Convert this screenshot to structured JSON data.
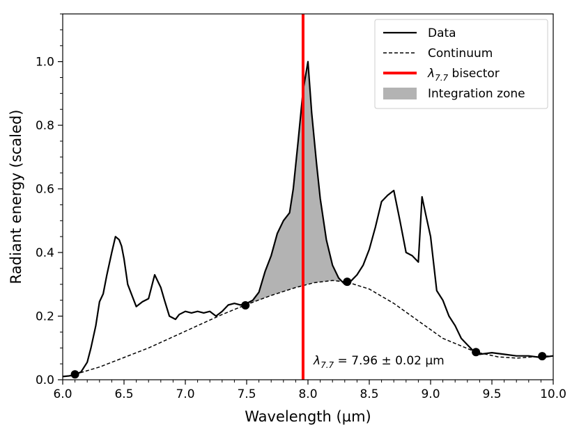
{
  "chart_data": {
    "type": "line",
    "title": "",
    "xlabel": "Wavelength (µm)",
    "ylabel": "Radiant energy (scaled)",
    "xlim": [
      6.0,
      10.0
    ],
    "ylim": [
      0.0,
      1.15
    ],
    "x_ticks": [
      6.0,
      6.5,
      7.0,
      7.5,
      8.0,
      8.5,
      9.0,
      9.5,
      10.0
    ],
    "x_tick_labels": [
      "6.0",
      "6.5",
      "7.0",
      "7.5",
      "8.0",
      "8.5",
      "9.0",
      "9.5",
      "10.0"
    ],
    "x_minor_step": 0.1,
    "y_ticks": [
      0.0,
      0.2,
      0.4,
      0.6,
      0.8,
      1.0
    ],
    "y_tick_labels": [
      "0.0",
      "0.2",
      "0.4",
      "0.6",
      "0.8",
      "1.0"
    ],
    "y_minor_step": 0.05,
    "grid": false,
    "legend_position": "top-right",
    "legend": [
      {
        "label": "Data",
        "style": "solid-line"
      },
      {
        "label": "Continuum",
        "style": "dashed-line"
      },
      {
        "label_main": "λ",
        "label_sub": "7.7",
        "label_rest": " bisector",
        "style": "red-line"
      },
      {
        "label": "Integration zone",
        "style": "gray-patch"
      }
    ],
    "annotation": {
      "main": "λ",
      "sub": "7.7",
      "rest": " = 7.96 ± 0.02 µm"
    },
    "series": [
      {
        "name": "Data",
        "color": "#000000",
        "x": [
          6.0,
          6.05,
          6.1,
          6.15,
          6.2,
          6.23,
          6.27,
          6.3,
          6.33,
          6.36,
          6.4,
          6.43,
          6.46,
          6.48,
          6.5,
          6.53,
          6.57,
          6.6,
          6.65,
          6.7,
          6.75,
          6.8,
          6.83,
          6.87,
          6.92,
          6.95,
          7.0,
          7.05,
          7.1,
          7.15,
          7.2,
          7.25,
          7.3,
          7.35,
          7.4,
          7.45,
          7.5,
          7.55,
          7.6,
          7.65,
          7.7,
          7.75,
          7.8,
          7.85,
          7.88,
          7.92,
          7.96,
          8.0,
          8.03,
          8.07,
          8.1,
          8.15,
          8.2,
          8.25,
          8.3,
          8.35,
          8.4,
          8.45,
          8.5,
          8.55,
          8.6,
          8.65,
          8.7,
          8.75,
          8.8,
          8.85,
          8.9,
          8.93,
          8.96,
          9.0,
          9.05,
          9.1,
          9.15,
          9.2,
          9.25,
          9.3,
          9.35,
          9.4,
          9.5,
          9.6,
          9.7,
          9.8,
          9.9,
          10.0
        ],
        "y": [
          0.01,
          0.012,
          0.015,
          0.025,
          0.055,
          0.1,
          0.17,
          0.245,
          0.27,
          0.33,
          0.4,
          0.45,
          0.44,
          0.42,
          0.38,
          0.3,
          0.26,
          0.23,
          0.245,
          0.255,
          0.33,
          0.29,
          0.25,
          0.2,
          0.19,
          0.205,
          0.215,
          0.21,
          0.215,
          0.21,
          0.215,
          0.2,
          0.215,
          0.235,
          0.24,
          0.235,
          0.24,
          0.25,
          0.275,
          0.34,
          0.39,
          0.46,
          0.5,
          0.525,
          0.6,
          0.75,
          0.91,
          1.0,
          0.84,
          0.68,
          0.57,
          0.44,
          0.36,
          0.32,
          0.3,
          0.31,
          0.33,
          0.36,
          0.41,
          0.48,
          0.56,
          0.58,
          0.595,
          0.5,
          0.4,
          0.39,
          0.37,
          0.575,
          0.52,
          0.45,
          0.28,
          0.25,
          0.2,
          0.17,
          0.13,
          0.11,
          0.09,
          0.08,
          0.085,
          0.08,
          0.075,
          0.075,
          0.07,
          0.075
        ]
      },
      {
        "name": "Continuum",
        "color": "#000000",
        "x": [
          6.1,
          6.3,
          6.5,
          6.7,
          6.9,
          7.1,
          7.3,
          7.49,
          7.7,
          7.9,
          8.05,
          8.2,
          8.32,
          8.5,
          8.7,
          8.9,
          9.1,
          9.37,
          9.55,
          9.7,
          9.91,
          10.0
        ],
        "y": [
          0.017,
          0.04,
          0.07,
          0.1,
          0.135,
          0.17,
          0.205,
          0.235,
          0.265,
          0.29,
          0.305,
          0.312,
          0.307,
          0.285,
          0.24,
          0.185,
          0.13,
          0.087,
          0.072,
          0.068,
          0.074,
          0.075
        ]
      }
    ],
    "anchor_points": {
      "x": [
        6.1,
        7.49,
        8.32,
        9.37,
        9.91
      ],
      "y": [
        0.017,
        0.234,
        0.308,
        0.087,
        0.074
      ]
    },
    "integration_zone": {
      "x_start": 7.49,
      "x_end": 8.32,
      "color": "#b3b3b3"
    },
    "bisector": {
      "x": 7.96,
      "color": "#ff0000"
    }
  }
}
